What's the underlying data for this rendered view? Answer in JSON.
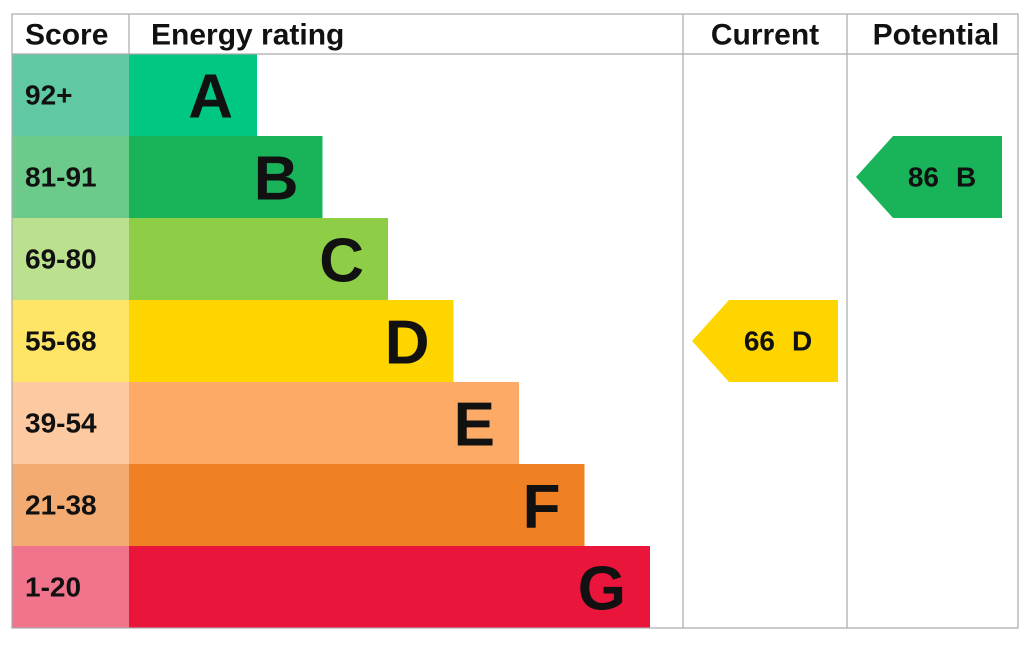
{
  "header": {
    "score": "Score",
    "rating": "Energy rating",
    "current": "Current",
    "potential": "Potential"
  },
  "bands": [
    {
      "score": "92+",
      "letter": "A",
      "color": "#00c781",
      "score_color": "#60c8a3"
    },
    {
      "score": "81-91",
      "letter": "B",
      "color": "#19b459",
      "score_color": "#6ccb8b"
    },
    {
      "score": "69-80",
      "letter": "C",
      "color": "#8dce46",
      "score_color": "#bbe18e"
    },
    {
      "score": "55-68",
      "letter": "D",
      "color": "#ffd500",
      "score_color": "#ffe566"
    },
    {
      "score": "39-54",
      "letter": "E",
      "color": "#fcaa65",
      "score_color": "#fdc9a0"
    },
    {
      "score": "21-38",
      "letter": "F",
      "color": "#ef8023",
      "score_color": "#f4ab72"
    },
    {
      "score": "1-20",
      "letter": "G",
      "color": "#e9153b",
      "score_color": "#f0758c"
    }
  ],
  "current": {
    "value": 66,
    "band": "D"
  },
  "potential": {
    "value": 86,
    "band": "B"
  }
}
